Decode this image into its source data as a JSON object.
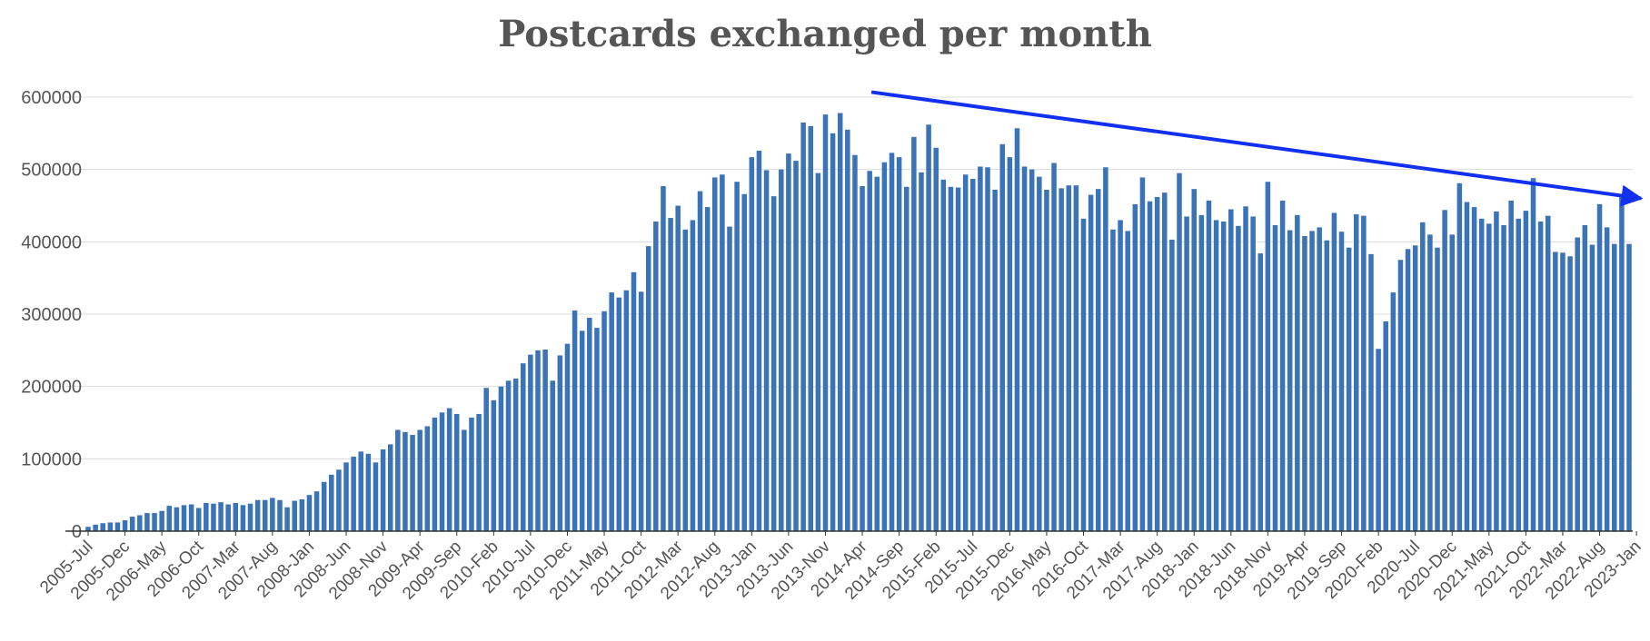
{
  "chart_data": {
    "type": "bar",
    "title": "Postcards exchanged per month",
    "xlabel": "",
    "ylabel": "",
    "ylim": [
      0,
      620000
    ],
    "yticks": [
      0,
      100000,
      200000,
      300000,
      400000,
      500000,
      600000
    ],
    "grid": true,
    "legend": "none",
    "bar_color": "#3a73b8",
    "annotation": {
      "type": "trend-arrow",
      "color": "#1230f0",
      "from": {
        "x": "2014-Apr",
        "y": 607000
      },
      "to": {
        "x": "2023-Jan",
        "y": 460000
      }
    },
    "x_tick_labels": [
      "2005-Jul",
      "2005-Dec",
      "2006-May",
      "2006-Oct",
      "2007-Mar",
      "2007-Aug",
      "2008-Jan",
      "2008-Jun",
      "2008-Nov",
      "2009-Apr",
      "2009-Sep",
      "2010-Feb",
      "2010-Jul",
      "2010-Dec",
      "2011-May",
      "2011-Oct",
      "2012-Mar",
      "2012-Aug",
      "2013-Jan",
      "2013-Jun",
      "2013-Nov",
      "2014-Apr",
      "2014-Sep",
      "2015-Feb",
      "2015-Jul",
      "2015-Dec",
      "2016-May",
      "2016-Oct",
      "2017-Mar",
      "2017-Aug",
      "2018-Jan",
      "2018-Jun",
      "2018-Nov",
      "2019-Apr",
      "2019-Sep",
      "2020-Feb",
      "2020-Jul",
      "2020-Dec",
      "2021-May",
      "2021-Oct",
      "2022-Mar",
      "2022-Aug",
      "2023-Jan"
    ],
    "x_start": "2005-Jul",
    "x_end": "2023-Apr",
    "values": [
      6000,
      9000,
      11000,
      12000,
      12000,
      15000,
      20000,
      22000,
      25000,
      25000,
      28000,
      35000,
      33000,
      36000,
      37000,
      32000,
      39000,
      38000,
      40000,
      37000,
      39000,
      36000,
      38000,
      43000,
      43000,
      46000,
      43000,
      33000,
      42000,
      44000,
      50000,
      55000,
      68000,
      78000,
      85000,
      95000,
      103000,
      110000,
      107000,
      95000,
      113000,
      120000,
      140000,
      137000,
      133000,
      140000,
      145000,
      157000,
      164000,
      170000,
      162000,
      140000,
      157000,
      162000,
      198000,
      181000,
      200000,
      208000,
      211000,
      232000,
      244000,
      250000,
      251000,
      208000,
      243000,
      259000,
      305000,
      277000,
      295000,
      281000,
      304000,
      330000,
      323000,
      333000,
      358000,
      331000,
      394000,
      428000,
      477000,
      433000,
      450000,
      417000,
      430000,
      470000,
      448000,
      489000,
      493000,
      421000,
      483000,
      466000,
      517000,
      526000,
      499000,
      463000,
      500000,
      522000,
      512000,
      565000,
      560000,
      495000,
      576000,
      550000,
      578000,
      555000,
      520000,
      477000,
      498000,
      490000,
      510000,
      523000,
      517000,
      476000,
      545000,
      496000,
      562000,
      530000,
      486000,
      476000,
      475000,
      493000,
      487000,
      504000,
      503000,
      472000,
      535000,
      517000,
      557000,
      504000,
      500000,
      490000,
      472000,
      509000,
      474000,
      478000,
      478000,
      432000,
      465000,
      473000,
      503000,
      417000,
      430000,
      415000,
      452000,
      489000,
      456000,
      462000,
      468000,
      403000,
      495000,
      435000,
      473000,
      437000,
      457000,
      430000,
      428000,
      445000,
      422000,
      449000,
      435000,
      384000,
      483000,
      423000,
      457000,
      416000,
      437000,
      408000,
      415000,
      420000,
      402000,
      440000,
      414000,
      392000,
      438000,
      436000,
      383000,
      252000,
      290000,
      330000,
      375000,
      390000,
      395000,
      427000,
      410000,
      392000,
      444000,
      410000,
      481000,
      455000,
      448000,
      432000,
      425000,
      442000,
      423000,
      457000,
      432000,
      443000,
      488000,
      428000,
      436000,
      386000,
      385000,
      380000,
      406000,
      423000,
      396000,
      452000,
      420000,
      397000,
      463000,
      397000
    ]
  }
}
